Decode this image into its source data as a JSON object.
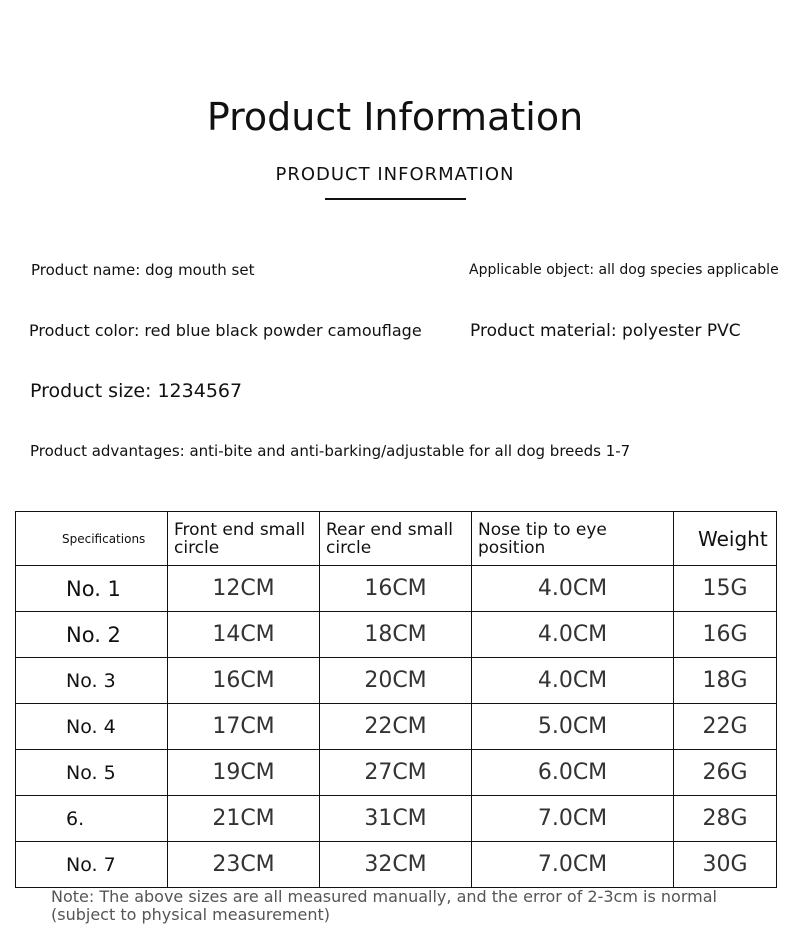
{
  "header": {
    "title": "Product Information",
    "subtitle": "PRODUCT INFORMATION"
  },
  "info": {
    "name": "Product name: dog mouth set",
    "object": "Applicable object: all dog species applicable",
    "color": "Product color: red blue black powder camouflage",
    "material": "Product material: polyester PVC",
    "size": "Product size: 1234567",
    "advantages": "Product advantages: anti-bite and anti-barking/adjustable for all dog breeds 1-7"
  },
  "table": {
    "headers": [
      "Specifications",
      "Front end small circle",
      "Rear end small circle",
      "Nose tip to eye position",
      "Weight"
    ],
    "rows": [
      [
        "No. 1",
        "12CM",
        "16CM",
        "4.0CM",
        "15G"
      ],
      [
        "No. 2",
        "14CM",
        "18CM",
        "4.0CM",
        "16G"
      ],
      [
        "No. 3",
        "16CM",
        "20CM",
        "4.0CM",
        "18G"
      ],
      [
        "No. 4",
        "17CM",
        "22CM",
        "5.0CM",
        "22G"
      ],
      [
        "No. 5",
        "19CM",
        "27CM",
        "6.0CM",
        "26G"
      ],
      [
        "6.",
        "21CM",
        "31CM",
        "7.0CM",
        "28G"
      ],
      [
        "No. 7",
        "23CM",
        "32CM",
        "7.0CM",
        "30G"
      ]
    ]
  },
  "note": {
    "line1": "Note: The above sizes are all measured manually, and the error of 2-3cm is normal",
    "line2": "(subject to physical measurement)"
  }
}
